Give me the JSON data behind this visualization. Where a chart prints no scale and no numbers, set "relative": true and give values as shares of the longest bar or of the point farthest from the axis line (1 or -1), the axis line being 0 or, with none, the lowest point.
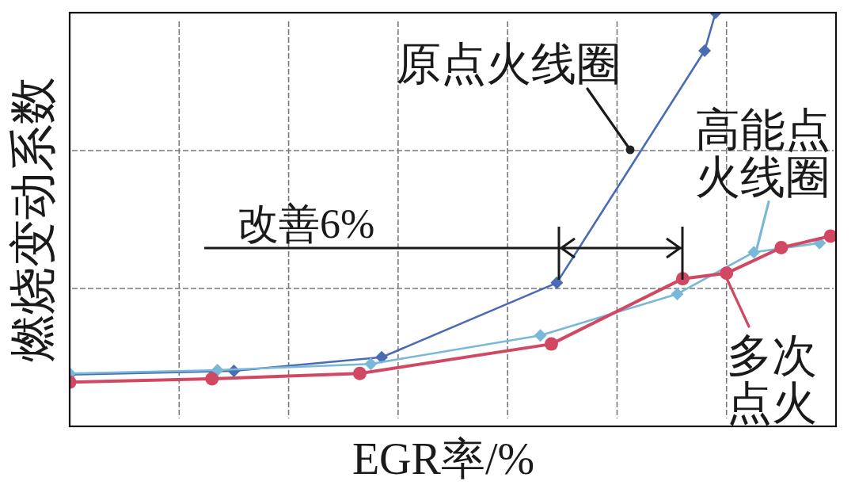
{
  "chart_data": {
    "type": "line",
    "relative": true,
    "xlabel": "EGR率/%",
    "ylabel": "燃烧变动系数",
    "grid": true,
    "line_style": "solid",
    "categories": [
      null,
      null,
      null,
      null,
      null,
      null,
      null,
      null,
      null,
      null,
      null,
      null,
      null,
      null,
      null,
      null,
      null,
      null,
      null,
      null,
      null,
      null,
      null,
      null,
      null,
      null,
      null,
      null,
      null,
      null,
      null,
      null,
      null,
      null,
      null,
      null,
      null,
      null,
      null,
      null,
      null,
      null,
      null,
      null,
      null,
      null,
      null,
      null,
      null,
      null,
      null,
      null,
      null,
      null,
      null,
      null,
      null,
      null,
      null,
      null,
      null,
      null,
      null,
      null,
      null,
      null,
      null,
      null,
      null,
      null,
      null,
      null,
      null,
      null,
      null,
      null,
      null,
      null,
      null,
      null,
      null,
      null,
      null,
      null,
      null,
      null,
      null,
      null,
      null,
      null,
      null,
      null,
      null,
      null,
      null,
      null,
      null,
      null,
      null,
      null,
      null,
      null,
      null,
      null,
      null,
      null,
      null,
      null,
      null,
      null,
      null,
      null,
      null,
      null,
      null,
      null,
      null,
      null,
      null,
      null,
      null,
      null,
      null,
      null,
      null,
      null,
      null,
      null,
      null,
      null,
      null,
      null,
      null,
      null,
      null,
      null,
      null,
      null,
      null,
      null,
      null
    ],
    "series": [
      {
        "color": "#4a6cb3",
        "marker": "diamond",
        "values": [
          0.125,
          null,
          null,
          null,
          null,
          null,
          null,
          null,
          null,
          null,
          null,
          null,
          null,
          null,
          null,
          null,
          null,
          null,
          null,
          null,
          null,
          null,
          null,
          null,
          null,
          null,
          null,
          null,
          null,
          null,
          0.134,
          null,
          null,
          null,
          null,
          null,
          null,
          null,
          null,
          null,
          null,
          null,
          null,
          null,
          null,
          null,
          null,
          null,
          null,
          null,
          null,
          null,
          null,
          null,
          null,
          null,
          null,
          0.167,
          null,
          null,
          null,
          null,
          null,
          null,
          null,
          null,
          null,
          null,
          null,
          null,
          null,
          null,
          null,
          null,
          null,
          null,
          null,
          null,
          null,
          null,
          null,
          null,
          null,
          null,
          null,
          null,
          null,
          null,
          null,
          0.347,
          null,
          null,
          null,
          null,
          null,
          null,
          null,
          null,
          null,
          null,
          null,
          null,
          null,
          null,
          null,
          null,
          null,
          null,
          null,
          null,
          null,
          null,
          null,
          null,
          null,
          null,
          0.908,
          null,
          1,
          null,
          null,
          null,
          null,
          null,
          null,
          null,
          null,
          null,
          null,
          null,
          null,
          null,
          null,
          null,
          null,
          null,
          null,
          null,
          null,
          null,
          null
        ]
      },
      {
        "color": "#7ab8d9",
        "marker": "diamond",
        "values": [
          0.128,
          null,
          null,
          null,
          null,
          null,
          null,
          null,
          null,
          null,
          null,
          null,
          null,
          null,
          null,
          null,
          null,
          null,
          null,
          null,
          null,
          null,
          null,
          null,
          null,
          null,
          null,
          0.136,
          null,
          null,
          null,
          null,
          null,
          null,
          null,
          null,
          null,
          null,
          null,
          null,
          null,
          null,
          null,
          null,
          null,
          null,
          null,
          null,
          null,
          null,
          null,
          null,
          null,
          null,
          null,
          0.151,
          null,
          null,
          null,
          null,
          null,
          null,
          null,
          null,
          null,
          null,
          null,
          null,
          null,
          null,
          null,
          null,
          null,
          null,
          null,
          null,
          null,
          null,
          null,
          null,
          null,
          null,
          null,
          null,
          null,
          null,
          0.22,
          null,
          null,
          null,
          null,
          null,
          null,
          null,
          null,
          null,
          null,
          null,
          null,
          null,
          null,
          null,
          null,
          null,
          null,
          null,
          null,
          null,
          null,
          null,
          null,
          0.32,
          null,
          null,
          null,
          null,
          null,
          null,
          null,
          null,
          null,
          null,
          null,
          null,
          null,
          0.421,
          null,
          null,
          null,
          null,
          null,
          null,
          null,
          null,
          null,
          null,
          null,
          0.443,
          null,
          null,
          null
        ]
      },
      {
        "color": "#d04862",
        "marker": "circle",
        "values": [
          0.107,
          null,
          null,
          null,
          null,
          null,
          null,
          null,
          null,
          null,
          null,
          null,
          null,
          null,
          null,
          null,
          null,
          null,
          null,
          null,
          null,
          null,
          null,
          null,
          null,
          null,
          0.115,
          null,
          null,
          null,
          null,
          null,
          null,
          null,
          null,
          null,
          null,
          null,
          null,
          null,
          null,
          null,
          null,
          null,
          null,
          null,
          null,
          null,
          null,
          null,
          null,
          null,
          null,
          0.128,
          null,
          null,
          null,
          null,
          null,
          null,
          null,
          null,
          null,
          null,
          null,
          null,
          null,
          null,
          null,
          null,
          null,
          null,
          null,
          null,
          null,
          null,
          null,
          null,
          null,
          null,
          null,
          null,
          null,
          null,
          null,
          null,
          null,
          null,
          0.199,
          null,
          null,
          null,
          null,
          null,
          null,
          null,
          null,
          null,
          null,
          null,
          null,
          null,
          null,
          null,
          null,
          null,
          null,
          null,
          null,
          null,
          null,
          null,
          0.357,
          null,
          null,
          null,
          null,
          null,
          null,
          null,
          0.37,
          null,
          null,
          null,
          null,
          null,
          null,
          null,
          null,
          null,
          0.432,
          null,
          null,
          null,
          null,
          null,
          null,
          null,
          null,
          0.46,
          null
        ]
      }
    ],
    "annotations": [
      "原点火线圈",
      {
        "text": "高能点火线圈",
        "y": 0.43
      },
      "多次点火",
      "改善6%"
    ]
  }
}
